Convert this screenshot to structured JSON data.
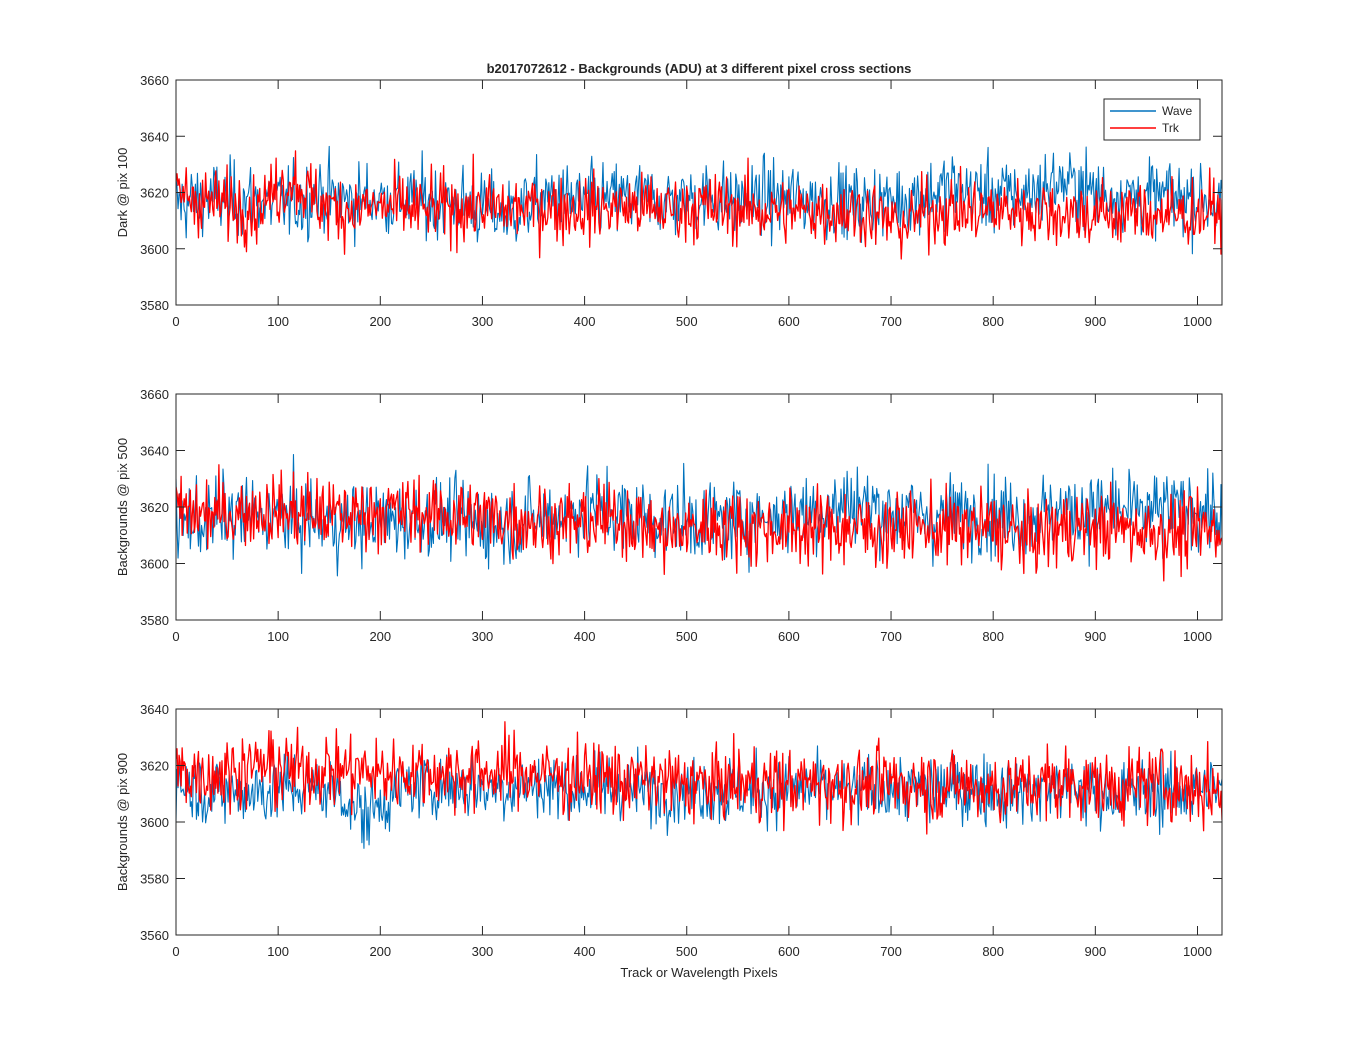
{
  "figure": {
    "title": "b2017072612 - Backgrounds (ADU) at 3 different pixel cross sections",
    "xlabel": "Track or Wavelength Pixels"
  },
  "legend": {
    "placement": "top-right",
    "entries": [
      {
        "name": "Wave",
        "color": "#0072bd"
      },
      {
        "name": "Trk",
        "color": "#ff0000"
      }
    ]
  },
  "chart_data": [
    {
      "type": "line",
      "title": "b2017072612 - Backgrounds (ADU) at 3 different pixel cross sections",
      "xlabel": "",
      "ylabel": "Dark @ pix 100",
      "xlim": [
        0,
        1024
      ],
      "ylim": [
        3580,
        3660
      ],
      "xticks": [
        0,
        100,
        200,
        300,
        400,
        500,
        600,
        700,
        800,
        900,
        1000
      ],
      "yticks": [
        3580,
        3600,
        3620,
        3640,
        3660
      ],
      "series": [
        {
          "name": "Wave",
          "color": "#0072bd",
          "x": [
            0,
            40,
            80,
            120,
            140,
            160,
            200,
            240,
            280,
            325,
            360,
            400,
            440,
            480,
            520,
            560,
            600,
            640,
            680,
            720,
            760,
            800,
            840,
            864,
            900,
            940,
            980,
            1000,
            1024
          ],
          "y": [
            3616,
            3618,
            3617,
            3616,
            3620,
            3617,
            3618,
            3617,
            3616,
            3612,
            3618,
            3617,
            3618,
            3617,
            3618,
            3617,
            3618,
            3617,
            3616,
            3618,
            3622,
            3619,
            3620,
            3624,
            3620,
            3619,
            3618,
            3619,
            3615
          ]
        },
        {
          "name": "Trk",
          "color": "#ff0000",
          "x": [
            0,
            40,
            80,
            114,
            140,
            160,
            200,
            240,
            280,
            320,
            360,
            400,
            440,
            480,
            520,
            560,
            600,
            640,
            680,
            708,
            740,
            780,
            820,
            860,
            900,
            940,
            980,
            1024
          ],
          "y": [
            3620,
            3616,
            3615,
            3625,
            3616,
            3614,
            3615,
            3614,
            3615,
            3614,
            3615,
            3614,
            3615,
            3614,
            3615,
            3614,
            3613,
            3614,
            3613,
            3608,
            3614,
            3613,
            3614,
            3613,
            3612,
            3613,
            3612,
            3614
          ]
        }
      ]
    },
    {
      "type": "line",
      "title": "",
      "xlabel": "",
      "ylabel": "Backgrounds @ pix 500",
      "xlim": [
        0,
        1024
      ],
      "ylim": [
        3580,
        3660
      ],
      "xticks": [
        0,
        100,
        200,
        300,
        400,
        500,
        600,
        700,
        800,
        900,
        1000
      ],
      "yticks": [
        3580,
        3600,
        3620,
        3640,
        3660
      ],
      "series": [
        {
          "name": "Wave",
          "color": "#0072bd",
          "x": [
            0,
            40,
            80,
            120,
            160,
            200,
            240,
            280,
            320,
            360,
            400,
            440,
            480,
            520,
            560,
            600,
            640,
            664,
            700,
            740,
            780,
            820,
            860,
            900,
            940,
            980,
            1000,
            1024
          ],
          "y": [
            3614,
            3616,
            3617,
            3616,
            3614,
            3615,
            3616,
            3615,
            3614,
            3616,
            3620,
            3617,
            3616,
            3615,
            3616,
            3618,
            3619,
            3622,
            3618,
            3617,
            3618,
            3617,
            3618,
            3619,
            3618,
            3619,
            3620,
            3616
          ]
        },
        {
          "name": "Trk",
          "color": "#ff0000",
          "x": [
            0,
            40,
            80,
            120,
            160,
            200,
            240,
            280,
            320,
            360,
            400,
            440,
            484,
            520,
            560,
            600,
            640,
            680,
            720,
            760,
            800,
            834,
            860,
            900,
            940,
            980,
            1024
          ],
          "y": [
            3618,
            3617,
            3619,
            3618,
            3617,
            3619,
            3618,
            3617,
            3616,
            3615,
            3614,
            3616,
            3610,
            3614,
            3613,
            3612,
            3613,
            3612,
            3613,
            3612,
            3613,
            3609,
            3612,
            3613,
            3612,
            3611,
            3612
          ]
        }
      ]
    },
    {
      "type": "line",
      "title": "",
      "xlabel": "Track or Wavelength Pixels",
      "ylabel": "Backgrounds @ pix 900",
      "xlim": [
        0,
        1024
      ],
      "ylim": [
        3560,
        3640
      ],
      "xticks": [
        0,
        100,
        200,
        300,
        400,
        500,
        600,
        700,
        800,
        900,
        1000
      ],
      "yticks": [
        3560,
        3580,
        3600,
        3620,
        3640
      ],
      "series": [
        {
          "name": "Wave",
          "color": "#0072bd",
          "x": [
            0,
            40,
            80,
            120,
            160,
            184,
            220,
            260,
            300,
            340,
            380,
            420,
            460,
            500,
            540,
            580,
            620,
            660,
            700,
            740,
            780,
            820,
            860,
            900,
            940,
            980,
            1024
          ],
          "y": [
            3614,
            3610,
            3611,
            3612,
            3611,
            3602,
            3612,
            3613,
            3612,
            3613,
            3612,
            3612,
            3611,
            3612,
            3611,
            3611,
            3612,
            3611,
            3612,
            3611,
            3612,
            3611,
            3612,
            3611,
            3610,
            3611,
            3612
          ]
        },
        {
          "name": "Trk",
          "color": "#ff0000",
          "x": [
            0,
            40,
            84,
            120,
            160,
            200,
            240,
            280,
            320,
            360,
            400,
            440,
            480,
            520,
            560,
            600,
            640,
            680,
            720,
            760,
            800,
            840,
            880,
            920,
            960,
            1000,
            1024
          ],
          "y": [
            3618,
            3617,
            3620,
            3618,
            3619,
            3617,
            3618,
            3617,
            3618,
            3617,
            3616,
            3615,
            3614,
            3613,
            3614,
            3613,
            3614,
            3613,
            3614,
            3613,
            3612,
            3613,
            3614,
            3612,
            3614,
            3612,
            3611
          ]
        }
      ]
    }
  ]
}
